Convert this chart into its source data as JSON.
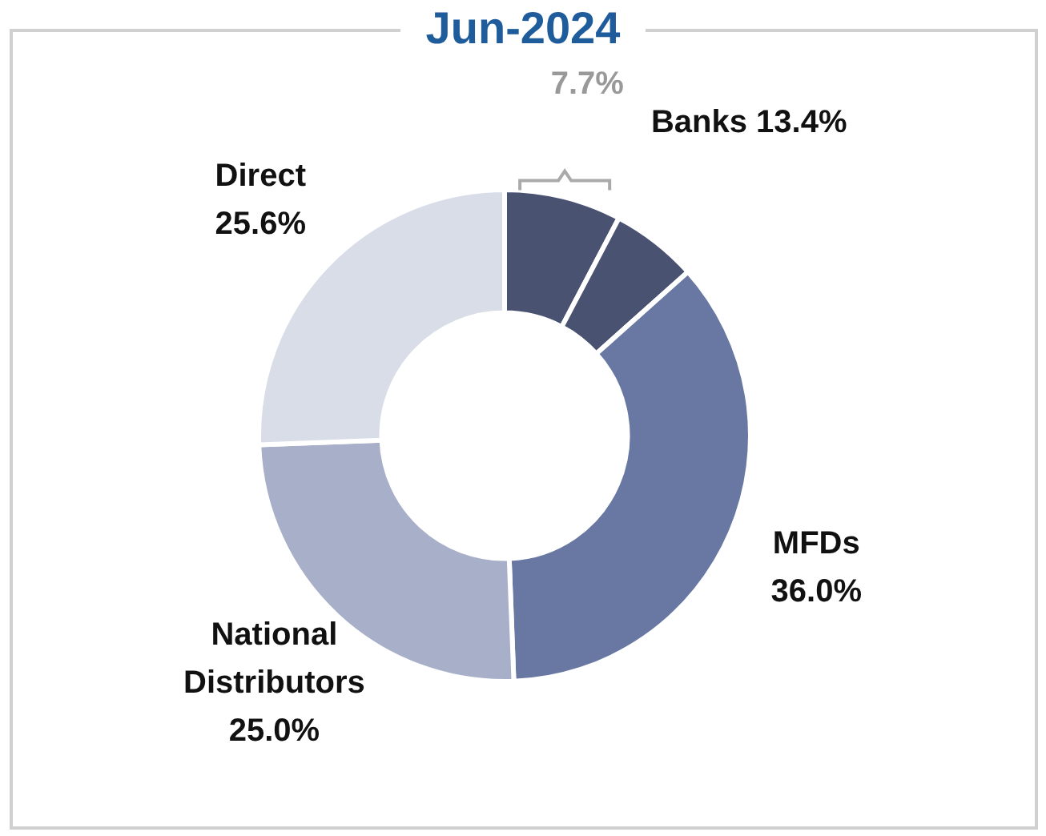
{
  "chart_data": {
    "type": "donut",
    "title": "Jun-2024",
    "categories": [
      null,
      null,
      "MFDs",
      "National Distributors",
      "Direct"
    ],
    "annotations": [
      "Banks 13.4%"
    ],
    "values": [
      7.7,
      5.7,
      36.0,
      25.0,
      25.6
    ],
    "value_labels": [
      "7.7%",
      null,
      "36.0%",
      "25.0%",
      "25.6%"
    ],
    "colors": [
      "#4a5272",
      "#4a5272",
      "#6878a2",
      "#a8afc9",
      "#d9dde8"
    ],
    "legend": false
  }
}
